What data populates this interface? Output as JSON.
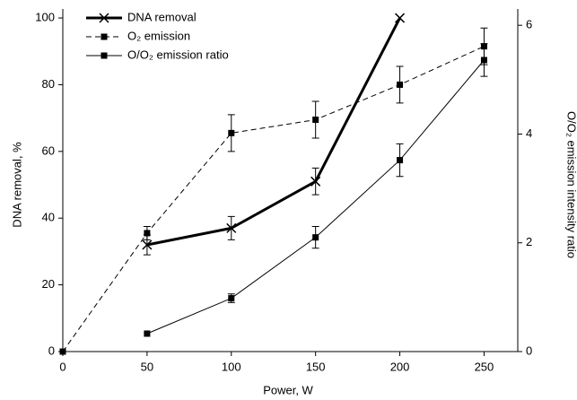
{
  "chart_data": {
    "type": "line",
    "xlabel": "Power, W",
    "ylabel": "DNA removal, %",
    "y2label": "O/O₂ emission intensity ratio",
    "xlim": [
      0,
      270
    ],
    "xticks": [
      0,
      50,
      100,
      150,
      200,
      250
    ],
    "ylim": [
      0,
      102.7
    ],
    "yticks": [
      0,
      20,
      40,
      60,
      80,
      100
    ],
    "y2lim": [
      0,
      6.3
    ],
    "y2ticks": [
      0,
      2,
      4,
      6
    ],
    "series": [
      {
        "name": "DNA removal",
        "color": "#000000",
        "style": "solid",
        "width": 3,
        "marker": "x",
        "x": [
          50,
          100,
          150,
          200
        ],
        "values": [
          32,
          37,
          51,
          100
        ],
        "errors": [
          3,
          3.5,
          4,
          0
        ]
      },
      {
        "name": "O₂ emission",
        "color": "#000000",
        "style": "dashed",
        "width": 1,
        "marker": "square",
        "x": [
          0,
          50,
          100,
          150,
          200,
          250
        ],
        "values": [
          0,
          35.5,
          65.5,
          69.5,
          80,
          91.5
        ],
        "errors": [
          0,
          2,
          5.5,
          5.5,
          5.5,
          5.5
        ]
      },
      {
        "name": "O/O₂ emission ratio",
        "color": "#000000",
        "style": "solid",
        "width": 1,
        "marker": "square",
        "axis": "y2",
        "x": [
          50,
          100,
          150,
          200,
          250
        ],
        "values": [
          0.33,
          0.98,
          2.1,
          3.52,
          5.36
        ],
        "errors": [
          0,
          0.08,
          0.2,
          0.3,
          0.3
        ]
      }
    ]
  }
}
